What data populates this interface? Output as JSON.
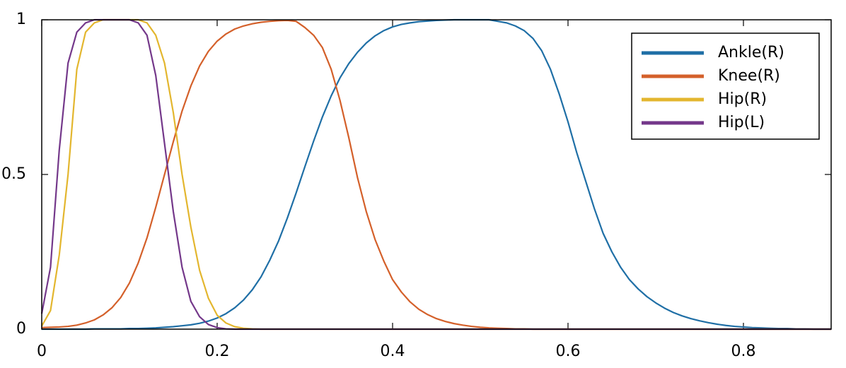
{
  "chart_data": {
    "type": "line",
    "x": [
      0,
      0.01,
      0.02,
      0.03,
      0.04,
      0.05,
      0.06,
      0.07,
      0.08,
      0.09,
      0.1,
      0.11,
      0.12,
      0.13,
      0.14,
      0.15,
      0.16,
      0.17,
      0.18,
      0.19,
      0.2,
      0.21,
      0.22,
      0.23,
      0.24,
      0.25,
      0.26,
      0.27,
      0.28,
      0.29,
      0.3,
      0.31,
      0.32,
      0.33,
      0.34,
      0.35,
      0.36,
      0.37,
      0.38,
      0.39,
      0.4,
      0.41,
      0.42,
      0.43,
      0.44,
      0.45,
      0.46,
      0.47,
      0.48,
      0.49,
      0.5,
      0.51,
      0.52,
      0.53,
      0.54,
      0.55,
      0.56,
      0.57,
      0.58,
      0.59,
      0.6,
      0.61,
      0.62,
      0.63,
      0.64,
      0.65,
      0.66,
      0.67,
      0.68,
      0.69,
      0.7,
      0.71,
      0.72,
      0.73,
      0.74,
      0.75,
      0.76,
      0.77,
      0.78,
      0.79,
      0.8,
      0.81,
      0.82,
      0.83,
      0.84,
      0.85,
      0.86,
      0.87,
      0.88,
      0.89,
      0.9
    ],
    "series": [
      {
        "name": "Ankle(R)",
        "color": "#1f6fa6",
        "values": [
          0,
          0,
          0,
          0,
          0,
          0,
          0.001,
          0.001,
          0.001,
          0.001,
          0.002,
          0.002,
          0.003,
          0.004,
          0.006,
          0.008,
          0.011,
          0.014,
          0.019,
          0.026,
          0.036,
          0.05,
          0.069,
          0.094,
          0.127,
          0.169,
          0.223,
          0.285,
          0.359,
          0.44,
          0.525,
          0.608,
          0.686,
          0.754,
          0.812,
          0.858,
          0.895,
          0.925,
          0.948,
          0.965,
          0.977,
          0.985,
          0.99,
          0.994,
          0.996,
          0.998,
          0.999,
          1,
          1,
          1,
          1,
          1,
          0.995,
          0.99,
          0.98,
          0.965,
          0.94,
          0.9,
          0.84,
          0.76,
          0.67,
          0.57,
          0.48,
          0.39,
          0.31,
          0.25,
          0.2,
          0.16,
          0.13,
          0.105,
          0.085,
          0.068,
          0.054,
          0.043,
          0.034,
          0.027,
          0.021,
          0.016,
          0.012,
          0.009,
          0.007,
          0.005,
          0.004,
          0.003,
          0.002,
          0.002,
          0.001,
          0.001,
          0,
          0,
          0
        ]
      },
      {
        "name": "Knee(R)",
        "color": "#d4602a",
        "values": [
          0.005,
          0.006,
          0.007,
          0.009,
          0.013,
          0.02,
          0.03,
          0.046,
          0.069,
          0.102,
          0.149,
          0.214,
          0.295,
          0.394,
          0.5,
          0.606,
          0.705,
          0.786,
          0.851,
          0.898,
          0.931,
          0.954,
          0.97,
          0.98,
          0.987,
          0.992,
          0.995,
          0.997,
          0.998,
          0.995,
          0.975,
          0.95,
          0.91,
          0.84,
          0.74,
          0.62,
          0.49,
          0.38,
          0.29,
          0.22,
          0.16,
          0.12,
          0.088,
          0.064,
          0.047,
          0.034,
          0.025,
          0.018,
          0.013,
          0.009,
          0.006,
          0.004,
          0.003,
          0.002,
          0.001,
          0.001,
          0,
          0,
          0,
          0,
          0,
          0,
          0,
          0,
          0,
          0,
          0,
          0,
          0,
          0,
          0,
          0,
          0,
          0,
          0,
          0,
          0,
          0,
          0,
          0,
          0,
          0,
          0,
          0,
          0,
          0,
          0,
          0,
          0,
          0,
          0
        ]
      },
      {
        "name": "Hip(R)",
        "color": "#e3b62e",
        "values": [
          0.01,
          0.06,
          0.24,
          0.5,
          0.84,
          0.96,
          0.99,
          1,
          1,
          1,
          1,
          1,
          0.99,
          0.95,
          0.86,
          0.7,
          0.5,
          0.33,
          0.19,
          0.1,
          0.045,
          0.02,
          0.008,
          0.003,
          0.001,
          0,
          0,
          0,
          0,
          0,
          0,
          0,
          0,
          0,
          0,
          0,
          0,
          0,
          0,
          0,
          0,
          0,
          0,
          0,
          0,
          0,
          0,
          0,
          0,
          0,
          0,
          0,
          0,
          0,
          0,
          0,
          0,
          0,
          0,
          0,
          0,
          0,
          0,
          0,
          0,
          0,
          0,
          0,
          0,
          0,
          0,
          0,
          0,
          0,
          0,
          0,
          0,
          0,
          0,
          0,
          0,
          0,
          0,
          0,
          0,
          0,
          0,
          0,
          0,
          0,
          0
        ]
      },
      {
        "name": "Hip(L)",
        "color": "#74388a",
        "values": [
          0.05,
          0.2,
          0.58,
          0.86,
          0.96,
          0.99,
          1,
          1,
          1,
          1,
          1,
          0.99,
          0.95,
          0.82,
          0.6,
          0.38,
          0.2,
          0.09,
          0.04,
          0.015,
          0.005,
          0.001,
          0,
          0,
          0,
          0,
          0,
          0,
          0,
          0,
          0,
          0,
          0,
          0,
          0,
          0,
          0,
          0,
          0,
          0,
          0,
          0,
          0,
          0,
          0,
          0,
          0,
          0,
          0,
          0,
          0,
          0,
          0,
          0,
          0,
          0,
          0,
          0,
          0,
          0,
          0,
          0,
          0,
          0,
          0,
          0,
          0,
          0,
          0,
          0,
          0,
          0,
          0,
          0,
          0,
          0,
          0,
          0,
          0,
          0,
          0,
          0,
          0,
          0,
          0,
          0,
          0,
          0,
          0,
          0,
          0
        ]
      }
    ],
    "xlim": [
      0,
      0.9
    ],
    "ylim": [
      0,
      1
    ],
    "xticks": [
      0,
      0.2,
      0.4,
      0.6,
      0.8
    ],
    "yticks": [
      0,
      0.5,
      1
    ],
    "grid": false,
    "legend": "top-right"
  }
}
